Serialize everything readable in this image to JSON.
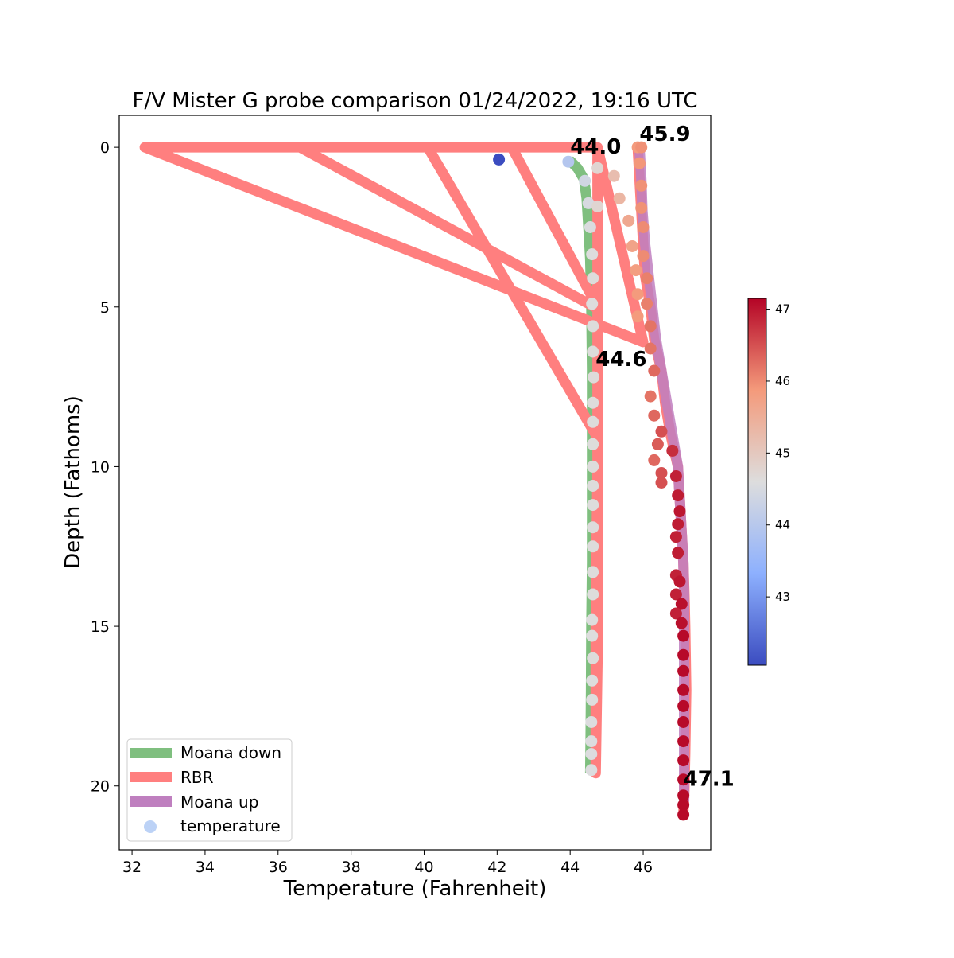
{
  "chart_data": {
    "type": "line",
    "title": "F/V Mister G probe comparison 01/24/2022, 19:16 UTC",
    "xlabel": "Temperature (Fahrenheit)",
    "ylabel": "Depth (Fathoms)",
    "xlim": [
      31.65,
      47.85
    ],
    "ylim": [
      22,
      -1
    ],
    "y_inverted": true,
    "xticks": [
      32,
      34,
      36,
      38,
      40,
      42,
      44,
      46
    ],
    "yticks": [
      0,
      5,
      10,
      15,
      20
    ],
    "grid": false,
    "legend_position": "lower-left",
    "series": [
      {
        "name": "Moana down",
        "color": "#7fbf7f",
        "points": [
          [
            43.98,
            0.4
          ],
          [
            44.2,
            0.65
          ],
          [
            44.38,
            1.0
          ],
          [
            44.45,
            1.6
          ],
          [
            44.5,
            2.5
          ],
          [
            44.55,
            3.5
          ],
          [
            44.58,
            5.0
          ],
          [
            44.6,
            7.0
          ],
          [
            44.6,
            9.0
          ],
          [
            44.6,
            11.0
          ],
          [
            44.6,
            13.0
          ],
          [
            44.58,
            15.0
          ],
          [
            44.57,
            17.0
          ],
          [
            44.56,
            18.5
          ],
          [
            44.55,
            19.6
          ]
        ]
      },
      {
        "name": "RBR",
        "color": "#ff7f7f",
        "points": [
          [
            44.75,
            0
          ],
          [
            42.4,
            0
          ],
          [
            44.75,
            5.0
          ],
          [
            44.75,
            0
          ],
          [
            40.1,
            0
          ],
          [
            44.75,
            9.1
          ],
          [
            44.75,
            0
          ],
          [
            36.6,
            0
          ],
          [
            44.75,
            5.05
          ],
          [
            44.75,
            0
          ],
          [
            32.35,
            0
          ],
          [
            46.0,
            6.1
          ],
          [
            44.75,
            0
          ],
          [
            44.75,
            10
          ],
          [
            44.7,
            15
          ],
          [
            44.7,
            19.6
          ],
          [
            44.75,
            16
          ],
          [
            44.75,
            0
          ]
        ]
      },
      {
        "name": "RBR",
        "color": "#ff7f7f",
        "points": [
          [
            45.85,
            0
          ],
          [
            45.9,
            1.0
          ],
          [
            45.95,
            2.0
          ],
          [
            46.0,
            3.0
          ],
          [
            46.05,
            4.0
          ],
          [
            46.2,
            5.0
          ],
          [
            46.3,
            6.0
          ],
          [
            46.5,
            7.0
          ],
          [
            46.6,
            8.0
          ],
          [
            46.75,
            9.0
          ],
          [
            46.95,
            10.0
          ],
          [
            47.0,
            11.0
          ],
          [
            47.05,
            12.0
          ],
          [
            47.1,
            13.0
          ],
          [
            47.13,
            14.0
          ],
          [
            47.15,
            15.0
          ],
          [
            47.18,
            17.0
          ],
          [
            47.15,
            19.0
          ],
          [
            47.12,
            20.5
          ],
          [
            47.1,
            20.8
          ]
        ]
      },
      {
        "name": "Moana up",
        "color": "#bf7fbf",
        "points": [
          [
            45.9,
            0
          ],
          [
            45.95,
            1.0
          ],
          [
            45.98,
            2.0
          ],
          [
            46.05,
            3.0
          ],
          [
            46.15,
            4.0
          ],
          [
            46.25,
            5.0
          ],
          [
            46.35,
            6.0
          ],
          [
            46.5,
            7.0
          ],
          [
            46.65,
            8.0
          ],
          [
            46.8,
            9.0
          ],
          [
            46.95,
            10.0
          ],
          [
            47.0,
            11.0
          ],
          [
            47.05,
            12.0
          ],
          [
            47.1,
            13.0
          ],
          [
            47.12,
            14.0
          ],
          [
            47.12,
            15.0
          ],
          [
            47.12,
            17.0
          ],
          [
            47.12,
            19.0
          ],
          [
            47.12,
            20.5
          ]
        ]
      }
    ],
    "scatter": {
      "name": "temperature",
      "legend_color": "#bcd2f6",
      "colorbar": {
        "ticks": [
          43,
          44,
          45,
          46,
          47
        ],
        "min": 42.05,
        "max": 47.15,
        "colors": [
          "#3b4cc0",
          "#8db0fe",
          "#dddddd",
          "#f49a7b",
          "#b40426"
        ]
      },
      "points": [
        [
          42.05,
          0.38
        ],
        [
          43.95,
          0.45
        ],
        [
          44.4,
          1.05
        ],
        [
          44.5,
          1.75
        ],
        [
          44.55,
          2.5
        ],
        [
          44.6,
          3.35
        ],
        [
          44.62,
          4.1
        ],
        [
          44.6,
          4.9
        ],
        [
          44.62,
          5.6
        ],
        [
          44.62,
          6.4
        ],
        [
          44.64,
          7.2
        ],
        [
          44.62,
          8.0
        ],
        [
          44.62,
          8.6
        ],
        [
          44.62,
          9.3
        ],
        [
          44.62,
          10.0
        ],
        [
          44.62,
          10.6
        ],
        [
          44.62,
          11.2
        ],
        [
          44.62,
          11.9
        ],
        [
          44.62,
          12.5
        ],
        [
          44.62,
          13.3
        ],
        [
          44.62,
          14.0
        ],
        [
          44.6,
          14.8
        ],
        [
          44.6,
          15.3
        ],
        [
          44.62,
          16.0
        ],
        [
          44.6,
          16.7
        ],
        [
          44.6,
          17.3
        ],
        [
          44.58,
          18.0
        ],
        [
          44.58,
          18.6
        ],
        [
          44.58,
          19.0
        ],
        [
          44.58,
          19.5
        ],
        [
          44.75,
          0.65
        ],
        [
          44.75,
          1.85
        ],
        [
          45.2,
          0.9
        ],
        [
          45.35,
          1.6
        ],
        [
          45.6,
          2.3
        ],
        [
          45.7,
          3.1
        ],
        [
          45.8,
          3.85
        ],
        [
          45.85,
          4.6
        ],
        [
          45.85,
          5.3
        ],
        [
          45.85,
          0
        ],
        [
          45.95,
          0
        ],
        [
          45.9,
          0.5
        ],
        [
          45.95,
          1.2
        ],
        [
          45.95,
          1.9
        ],
        [
          46.0,
          2.5
        ],
        [
          46.0,
          3.4
        ],
        [
          46.1,
          4.1
        ],
        [
          46.1,
          4.9
        ],
        [
          46.2,
          5.6
        ],
        [
          46.2,
          6.3
        ],
        [
          46.3,
          7.0
        ],
        [
          46.2,
          7.8
        ],
        [
          46.3,
          8.4
        ],
        [
          46.5,
          8.9
        ],
        [
          46.4,
          9.3
        ],
        [
          46.8,
          9.5
        ],
        [
          46.3,
          9.8
        ],
        [
          46.5,
          10.2
        ],
        [
          46.9,
          10.3
        ],
        [
          46.5,
          10.5
        ],
        [
          46.95,
          10.9
        ],
        [
          47.0,
          11.4
        ],
        [
          46.95,
          11.8
        ],
        [
          46.9,
          12.2
        ],
        [
          46.95,
          12.7
        ],
        [
          46.9,
          13.4
        ],
        [
          47.0,
          13.6
        ],
        [
          46.9,
          14.0
        ],
        [
          47.05,
          14.3
        ],
        [
          46.9,
          14.6
        ],
        [
          47.05,
          14.9
        ],
        [
          47.1,
          15.3
        ],
        [
          47.1,
          15.9
        ],
        [
          47.1,
          16.4
        ],
        [
          47.1,
          17.0
        ],
        [
          47.1,
          17.5
        ],
        [
          47.1,
          18.0
        ],
        [
          47.1,
          18.6
        ],
        [
          47.1,
          19.2
        ],
        [
          47.1,
          19.8
        ],
        [
          47.1,
          20.3
        ],
        [
          47.1,
          20.6
        ],
        [
          47.1,
          20.9
        ]
      ]
    },
    "annotations": [
      {
        "text": "44.0",
        "x": 44.0,
        "y": 0.2
      },
      {
        "text": "45.9",
        "x": 45.9,
        "y": -0.2
      },
      {
        "text": "44.6",
        "x": 44.7,
        "y": 6.85
      },
      {
        "text": "47.1",
        "x": 47.1,
        "y": 20.0
      }
    ]
  }
}
